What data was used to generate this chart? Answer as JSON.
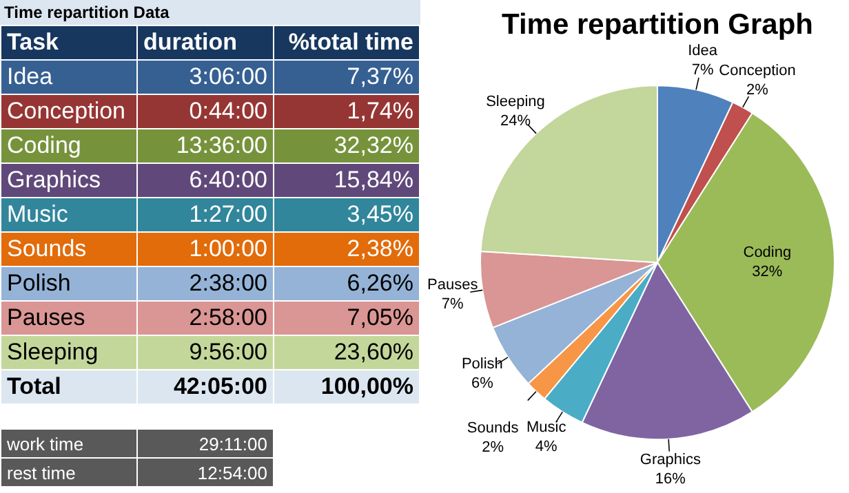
{
  "chart_data": [
    {
      "type": "other",
      "title": "Time repartition Data",
      "categories": [
        "Idea",
        "Conception",
        "Coding",
        "Graphics",
        "Music",
        "Sounds",
        "Polish",
        "Pauses",
        "Sleeping"
      ],
      "values": [
        7.37,
        1.74,
        32.32,
        15.84,
        3.45,
        2.38,
        6.26,
        7.05,
        23.6
      ],
      "value_labels": [
        "7,37%",
        "1,74%",
        "32,32%",
        "15,84%",
        "3,45%",
        "2,38%",
        "6,26%",
        "7,05%",
        "23,60%"
      ],
      "colors": [
        "#366092",
        "#963634",
        "#76933c",
        "#60497a",
        "#31869b",
        "#e26b0a",
        "#95b3d7",
        "#da9694",
        "#c4d79b"
      ],
      "annotations": [
        "Task",
        "duration",
        "%total time",
        "3:06:00",
        "0:44:00",
        "13:36:00",
        "6:40:00",
        "1:27:00",
        "1:00:00",
        "2:38:00",
        "2:58:00",
        "9:56:00",
        "Total",
        "42:05:00",
        "100,00%",
        "work time",
        "29:11:00",
        "rest time",
        "12:54:00"
      ]
    },
    {
      "type": "pie",
      "title": "Time repartition Graph",
      "categories": [
        "Idea",
        "Conception",
        "Coding",
        "Graphics",
        "Music",
        "Sounds",
        "Polish",
        "Pauses",
        "Sleeping"
      ],
      "values": [
        7,
        2,
        32,
        16,
        4,
        2,
        6,
        7,
        24
      ],
      "colors": [
        "#4f81bd",
        "#c0504d",
        "#9bbb59",
        "#8064a2",
        "#4bacc6",
        "#f79646",
        "#95b3d7",
        "#d99694",
        "#c3d69b"
      ],
      "value_labels": [
        "7%",
        "2%",
        "32%",
        "16%",
        "4%",
        "2%",
        "6%",
        "7%",
        "24%"
      ],
      "legend": false
    }
  ]
}
